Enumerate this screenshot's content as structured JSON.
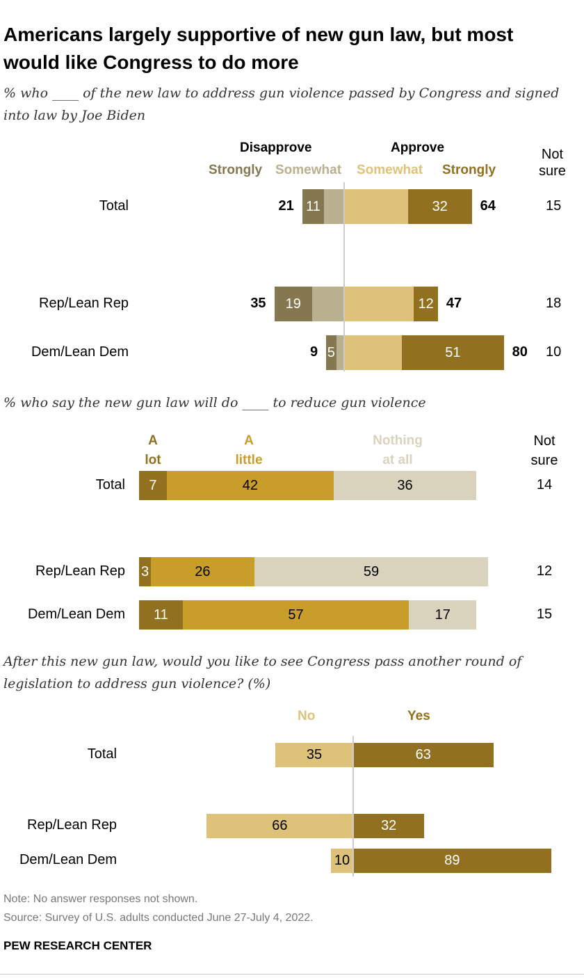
{
  "title": "Americans largely supportive of new gun law, but most would like Congress to do more",
  "chart_data": [
    {
      "type": "bar",
      "subtype": "diverging-stacked",
      "subtitle": "% who ____ of the new law to address gun violence passed by Congress and signed into law by Joe Biden",
      "group_headers": [
        "Disapprove",
        "Approve"
      ],
      "legend": [
        {
          "name": "Strongly",
          "color": "#857850"
        },
        {
          "name": "Somewhat",
          "color": "#b9b08f"
        },
        {
          "name": "Somewhat",
          "color": "#dfc27a"
        },
        {
          "name": "Strongly",
          "color": "#917120"
        }
      ],
      "not_sure_header": [
        "Not",
        "sure"
      ],
      "categories": [
        "Total",
        "Rep/Lean Rep",
        "Dem/Lean Dem"
      ],
      "series": [
        {
          "name": "Disapprove strongly",
          "side": "left",
          "color": "#857850",
          "values": [
            11,
            19,
            5
          ],
          "labeled": true
        },
        {
          "name": "Disapprove somewhat",
          "side": "left",
          "color": "#b9b08f",
          "values": [
            10,
            16,
            4
          ],
          "labeled": false
        },
        {
          "name": "Approve somewhat",
          "side": "right",
          "color": "#dfc27a",
          "values": [
            32,
            35,
            29
          ],
          "labeled": false
        },
        {
          "name": "Approve strongly",
          "side": "right",
          "color": "#917120",
          "values": [
            32,
            12,
            51
          ],
          "labeled": true
        }
      ],
      "disapprove_totals": [
        21,
        35,
        9
      ],
      "approve_totals": [
        64,
        47,
        80
      ],
      "not_sure": [
        15,
        18,
        10
      ]
    },
    {
      "type": "bar",
      "subtype": "stacked",
      "subtitle": "% who say the new gun law will do ____ to reduce gun violence",
      "legend": [
        {
          "name": [
            "A",
            "lot"
          ],
          "color": "#917120"
        },
        {
          "name": [
            "A",
            "little"
          ],
          "color": "#c99d29"
        },
        {
          "name": [
            "Nothing",
            "at all"
          ],
          "color": "#d9d2bd"
        }
      ],
      "not_sure_header": [
        "Not",
        "sure"
      ],
      "categories": [
        "Total",
        "Rep/Lean Rep",
        "Dem/Lean Dem"
      ],
      "series": [
        {
          "name": "A lot",
          "color": "#917120",
          "text": "#fff",
          "values": [
            7,
            3,
            11
          ]
        },
        {
          "name": "A little",
          "color": "#c99d29",
          "text": "#000",
          "values": [
            42,
            26,
            57
          ]
        },
        {
          "name": "Nothing at all",
          "color": "#d9d2bd",
          "text": "#000",
          "values": [
            36,
            59,
            17
          ]
        }
      ],
      "not_sure": [
        14,
        12,
        15
      ]
    },
    {
      "type": "bar",
      "subtype": "diverging",
      "subtitle": "After this new gun law, would you like to see Congress pass another round of legislation to address gun violence? (%)",
      "legend": [
        {
          "name": "No",
          "color": "#dfc27a"
        },
        {
          "name": "Yes",
          "color": "#917120"
        }
      ],
      "categories": [
        "Total",
        "Rep/Lean Rep",
        "Dem/Lean Dem"
      ],
      "series": [
        {
          "name": "No",
          "side": "left",
          "color": "#dfc27a",
          "text": "#000",
          "values": [
            35,
            66,
            10
          ]
        },
        {
          "name": "Yes",
          "side": "right",
          "color": "#917120",
          "text": "#fff",
          "values": [
            63,
            32,
            89
          ]
        }
      ]
    }
  ],
  "notes": {
    "note": "Note: No answer responses not shown.",
    "source": "Source: Survey of U.S. adults conducted June 27-July 4, 2022.",
    "brand": "PEW RESEARCH CENTER"
  }
}
